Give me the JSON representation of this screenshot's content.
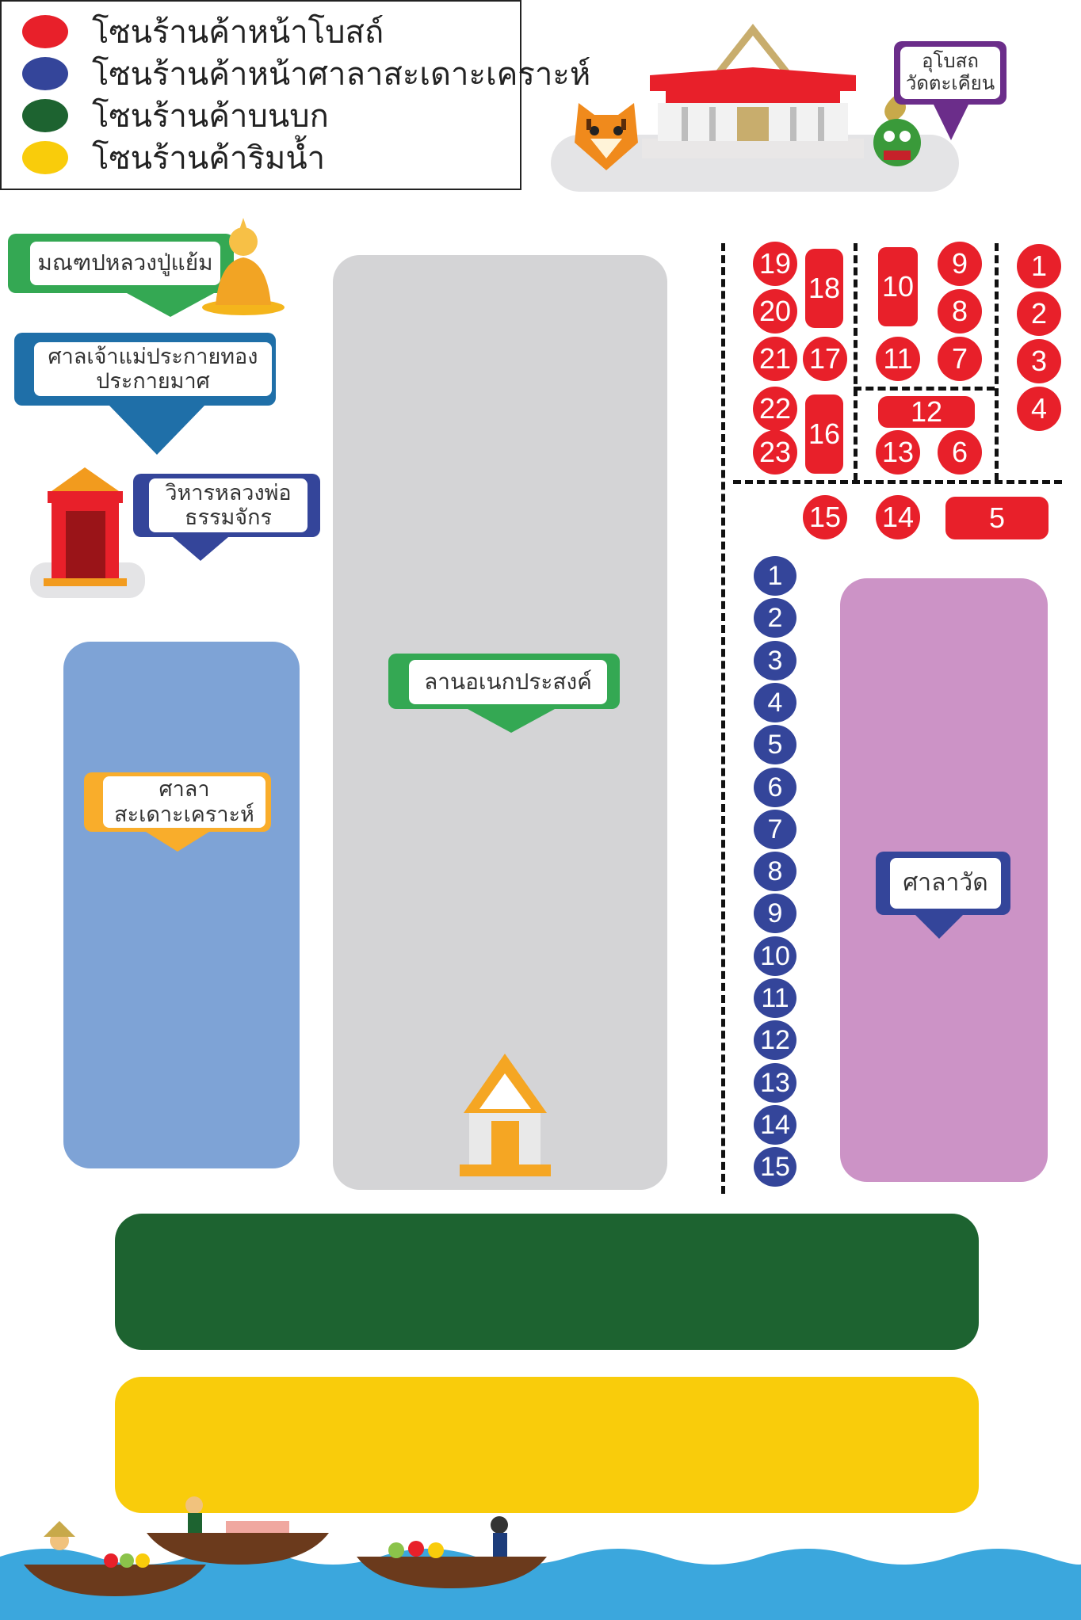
{
  "legend": {
    "items": [
      {
        "label": "โซนร้านค้าหน้าโบสถ์",
        "color": "#e8202a"
      },
      {
        "label": "โซนร้านค้าหน้าศาลาสะเดาะเคราะห์",
        "color": "#34459a"
      },
      {
        "label": "โซนร้านค้าบนบก",
        "color": "#1d6330"
      },
      {
        "label": "โซนร้านค้าริมน้ำ",
        "color": "#f9cc0b"
      }
    ]
  },
  "landmarks": {
    "ubosot": "อุโบสถ\nวัดตะเคียน",
    "mondop": "มณฑปหลวงปู่แย้ม",
    "shrine": "ศาลเจ้าแม่ประกายทอง\nประกายมาศ",
    "vihara": "วิหารหลวงพ่อ\nธรรมจักร",
    "plaza": "ลานอเนกประสงค์",
    "sala_sadao": "ศาลา\nสะเดาะเคราะห์",
    "sala_wat": "ศาลาวัด"
  },
  "red_stalls": [
    "1",
    "2",
    "3",
    "4",
    "5",
    "6",
    "7",
    "8",
    "9",
    "10",
    "11",
    "12",
    "13",
    "14",
    "15",
    "16",
    "17",
    "18",
    "19",
    "20",
    "21",
    "22",
    "23"
  ],
  "blue_stalls": [
    "1",
    "2",
    "3",
    "4",
    "5",
    "6",
    "7",
    "8",
    "9",
    "10",
    "11",
    "12",
    "13",
    "14",
    "15"
  ],
  "colors": {
    "red": "#e8202a",
    "blue": "#34459a",
    "green": "#1d6330",
    "yellow": "#f9cc0b",
    "sala_blue": "#7ea3d6",
    "plaza_gray": "#d4d4d6",
    "sala_purple": "#cc93c6",
    "water": "#3ba7dd"
  },
  "icons": [
    "tiger-icon",
    "temple-icon",
    "dragon-icon",
    "buddha-icon",
    "shrine-gate-icon",
    "small-temple-icon",
    "boat-icon"
  ]
}
